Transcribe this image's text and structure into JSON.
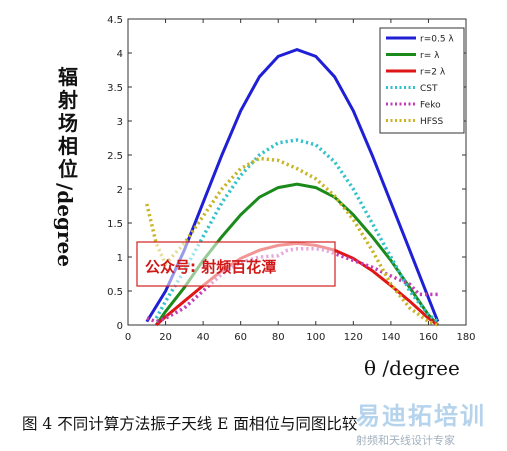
{
  "chart_data": {
    "type": "line",
    "ylabel_cn": "辐射场相位",
    "ylabel_unit": "/degree",
    "xlabel": "θ /degree",
    "xlim": [
      0,
      180
    ],
    "ylim": [
      0,
      4.5
    ],
    "xticks": [
      "0",
      "20",
      "40",
      "60",
      "80",
      "100",
      "120",
      "140",
      "160",
      "180"
    ],
    "yticks": [
      "0",
      "0.5",
      "1",
      "1.5",
      "2",
      "2.5",
      "3",
      "3.5",
      "4",
      "4.5"
    ],
    "legend_position": "top-right",
    "series": [
      {
        "name": "r=0.5 λ",
        "color": "#1f1fd6",
        "style": "solid",
        "x": [
          10,
          20,
          30,
          40,
          50,
          60,
          70,
          80,
          90,
          100,
          110,
          120,
          130,
          140,
          150,
          160,
          165
        ],
        "y": [
          0.05,
          0.5,
          1.1,
          1.8,
          2.5,
          3.15,
          3.65,
          3.95,
          4.05,
          3.95,
          3.65,
          3.15,
          2.5,
          1.8,
          1.1,
          0.4,
          0.05
        ]
      },
      {
        "name": "r= λ",
        "color": "#1a8a1a",
        "style": "solid",
        "x": [
          15,
          20,
          30,
          40,
          50,
          60,
          70,
          80,
          90,
          100,
          110,
          120,
          130,
          140,
          150,
          160,
          165
        ],
        "y": [
          0.0,
          0.2,
          0.55,
          0.95,
          1.3,
          1.62,
          1.88,
          2.02,
          2.07,
          2.02,
          1.88,
          1.62,
          1.3,
          0.95,
          0.55,
          0.15,
          0.0
        ]
      },
      {
        "name": "r=2 λ",
        "color": "#e01515",
        "style": "solid",
        "x": [
          15,
          20,
          30,
          40,
          50,
          60,
          70,
          80,
          90,
          100,
          110,
          120,
          130,
          140,
          150,
          160,
          165
        ],
        "y": [
          0.0,
          0.12,
          0.35,
          0.58,
          0.8,
          0.98,
          1.1,
          1.17,
          1.2,
          1.17,
          1.1,
          0.98,
          0.8,
          0.58,
          0.35,
          0.1,
          0.0
        ]
      },
      {
        "name": "CST",
        "color": "#33c2cc",
        "style": "dotted",
        "x": [
          15,
          20,
          30,
          40,
          50,
          60,
          70,
          80,
          90,
          100,
          110,
          120,
          130,
          140,
          150,
          160,
          165
        ],
        "y": [
          0.1,
          0.35,
          0.8,
          1.3,
          1.8,
          2.2,
          2.5,
          2.68,
          2.72,
          2.65,
          2.4,
          2.0,
          1.5,
          1.0,
          0.5,
          0.15,
          0.05
        ]
      },
      {
        "name": "Feko",
        "color": "#c43cb4",
        "style": "dotted",
        "x": [
          10,
          15,
          20,
          30,
          40,
          50,
          60,
          70,
          80,
          85,
          90,
          100,
          105,
          110,
          120,
          130,
          140,
          150,
          155,
          160,
          165
        ],
        "y": [
          0.1,
          0.05,
          0.1,
          0.25,
          0.5,
          0.75,
          0.92,
          1.0,
          1.02,
          1.1,
          1.12,
          1.12,
          1.1,
          1.05,
          0.95,
          0.85,
          0.72,
          0.6,
          0.45,
          0.45,
          0.45
        ]
      },
      {
        "name": "HFSS",
        "color": "#c8b424",
        "style": "dotted",
        "x": [
          10,
          15,
          20,
          30,
          40,
          50,
          60,
          70,
          80,
          90,
          100,
          110,
          120,
          130,
          140,
          150,
          160,
          165
        ],
        "y": [
          1.78,
          1.2,
          0.9,
          1.2,
          1.6,
          2.0,
          2.3,
          2.45,
          2.42,
          2.3,
          2.15,
          1.9,
          1.55,
          1.1,
          0.6,
          0.25,
          0.05,
          0.0
        ]
      }
    ]
  },
  "caption": "图 4    不同计算方法振子天线 E 面相位与同图比较",
  "watermark_box": "公众号: 射频百花潭",
  "site_logo": "易迪拓培训",
  "site_sub": "射频和天线设计专家"
}
